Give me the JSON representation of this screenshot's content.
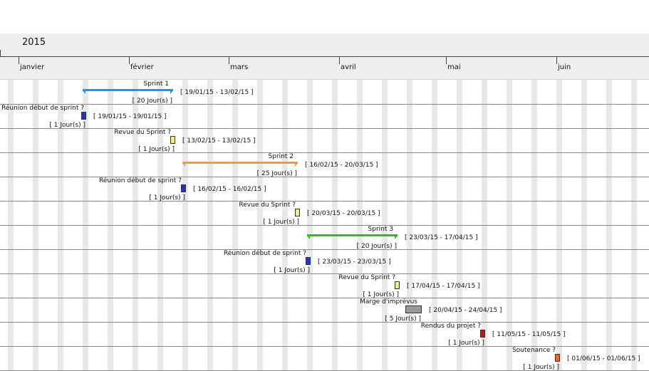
{
  "timeline": {
    "year": "2015",
    "months": [
      "janvier",
      "février",
      "mars",
      "avril",
      "mai",
      "juin"
    ]
  },
  "colors": {
    "sprint1": "#1e96ea",
    "sprint2": "#f59a3c",
    "sprint3": "#33bb1c",
    "reunion": "#2233cc",
    "revue": "#f2ee86",
    "marge": "#999999",
    "rendus": "#cc1111",
    "soutenance": "#e06a3a"
  },
  "tasks": [
    {
      "name": "Sprint 1",
      "dates": "[ 19/01/15 - 13/02/15 ]",
      "duration": "[ 20 Jour(s) ]",
      "kind": "sprint",
      "color": "sprint1"
    },
    {
      "name": "Réunion début de sprint ?",
      "dates": "[ 19/01/15 - 19/01/15 ]",
      "duration": "[ 1 Jour(s) ]",
      "kind": "task",
      "color": "reunion"
    },
    {
      "name": "Revue du Sprint ?",
      "dates": "[ 13/02/15 - 13/02/15 ]",
      "duration": "[ 1 Jour(s) ]",
      "kind": "task",
      "color": "revue"
    },
    {
      "name": "Sprint 2",
      "dates": "[ 16/02/15 - 20/03/15 ]",
      "duration": "[ 25 Jour(s) ]",
      "kind": "sprint",
      "color": "sprint2"
    },
    {
      "name": "Réunion début de sprint ?",
      "dates": "[ 16/02/15 - 16/02/15 ]",
      "duration": "[ 1 Jour(s) ]",
      "kind": "task",
      "color": "reunion"
    },
    {
      "name": "Revue du Sprint ?",
      "dates": "[ 20/03/15 - 20/03/15 ]",
      "duration": "[ 1 Jour(s) ]",
      "kind": "task",
      "color": "revue"
    },
    {
      "name": "Sprint 3",
      "dates": "[ 23/03/15 - 17/04/15 ]",
      "duration": "[ 20 Jour(s) ]",
      "kind": "sprint",
      "color": "sprint3"
    },
    {
      "name": "Réunion début de sprint ?",
      "dates": "[ 23/03/15 - 23/03/15 ]",
      "duration": "[ 1 Jour(s) ]",
      "kind": "task",
      "color": "reunion"
    },
    {
      "name": "Revue du Sprint ?",
      "dates": "[ 17/04/15 - 17/04/15 ]",
      "duration": "[ 1 Jour(s) ]",
      "kind": "task",
      "color": "revue"
    },
    {
      "name": "Marge d'imprévus",
      "dates": "[ 20/04/15 - 24/04/15 ]",
      "duration": "[ 5 Jour(s) ]",
      "kind": "task",
      "color": "marge"
    },
    {
      "name": "Rendus du projet ?",
      "dates": "[ 11/05/15 - 11/05/15 ]",
      "duration": "[ 1 Jour(s) ]",
      "kind": "task",
      "color": "rendus"
    },
    {
      "name": "Soutenance ?",
      "dates": "[ 01/06/15 - 01/06/15 ]",
      "duration": "[ 1 Jour(s) ]",
      "kind": "task",
      "color": "soutenance"
    }
  ]
}
